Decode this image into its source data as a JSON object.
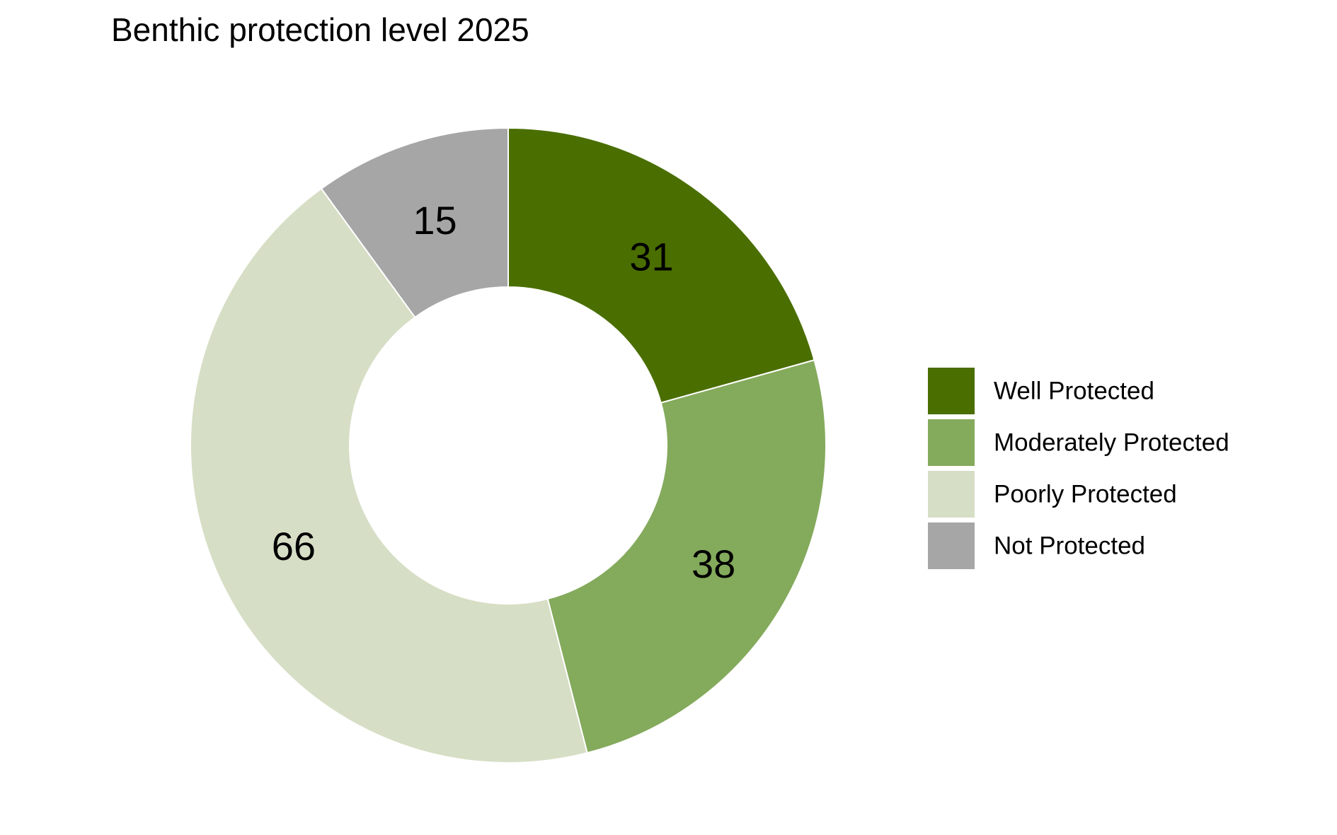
{
  "chart_data": {
    "type": "pie",
    "variant": "donut",
    "title": "Benthic protection level 2025",
    "categories": [
      "Well Protected",
      "Moderately Protected",
      "Poorly Protected",
      "Not Protected"
    ],
    "values": [
      31,
      38,
      66,
      15
    ],
    "colors": [
      "#4a6e00",
      "#84aa5c",
      "#d6dec5",
      "#a6a6a6"
    ],
    "data_labels": [
      "31",
      "38",
      "66",
      "15"
    ],
    "start_angle": "12 o'clock",
    "direction": "clockwise",
    "legend": {
      "position": "right",
      "entries": [
        "Well Protected",
        "Moderately Protected",
        "Poorly Protected",
        "Not Protected"
      ]
    }
  }
}
